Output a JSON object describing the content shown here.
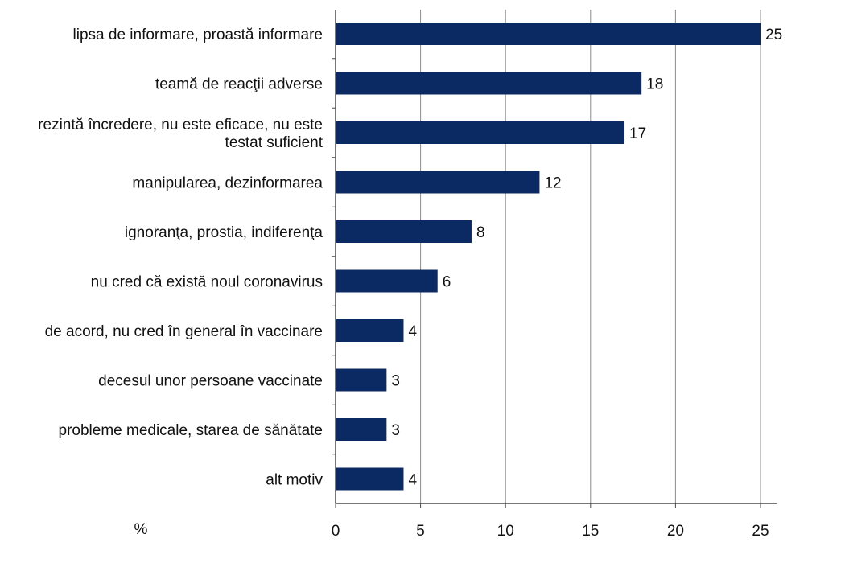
{
  "chart_data": {
    "type": "bar",
    "orientation": "horizontal",
    "categories": [
      [
        "lipsa de informare, proastă informare"
      ],
      [
        "teamă de reacţii adverse"
      ],
      [
        "rezintă încredere, nu este eficace, nu este",
        "testat suficient"
      ],
      [
        "manipularea, dezinformarea"
      ],
      [
        "ignoranţa, prostia, indiferenţa"
      ],
      [
        "nu cred că există noul coronavirus"
      ],
      [
        "de acord, nu cred în general în vaccinare"
      ],
      [
        "decesul unor persoane vaccinate"
      ],
      [
        "probleme medicale, starea de sănătate"
      ],
      [
        "alt motiv"
      ]
    ],
    "values": [
      25,
      18,
      17,
      12,
      8,
      6,
      4,
      3,
      3,
      4
    ],
    "data_labels": [
      "25",
      "18",
      "17",
      "12",
      "8",
      "6",
      "4",
      "3",
      "3",
      "4"
    ],
    "xlabel": "%",
    "xlim": [
      0,
      26
    ],
    "xticks": [
      0,
      5,
      10,
      15,
      20,
      25
    ],
    "grid": "vertical",
    "legend": "none",
    "bar_color": "#0b2a63",
    "grid_color": "#8c8c8c",
    "axis_color": "#4a4a4a"
  }
}
